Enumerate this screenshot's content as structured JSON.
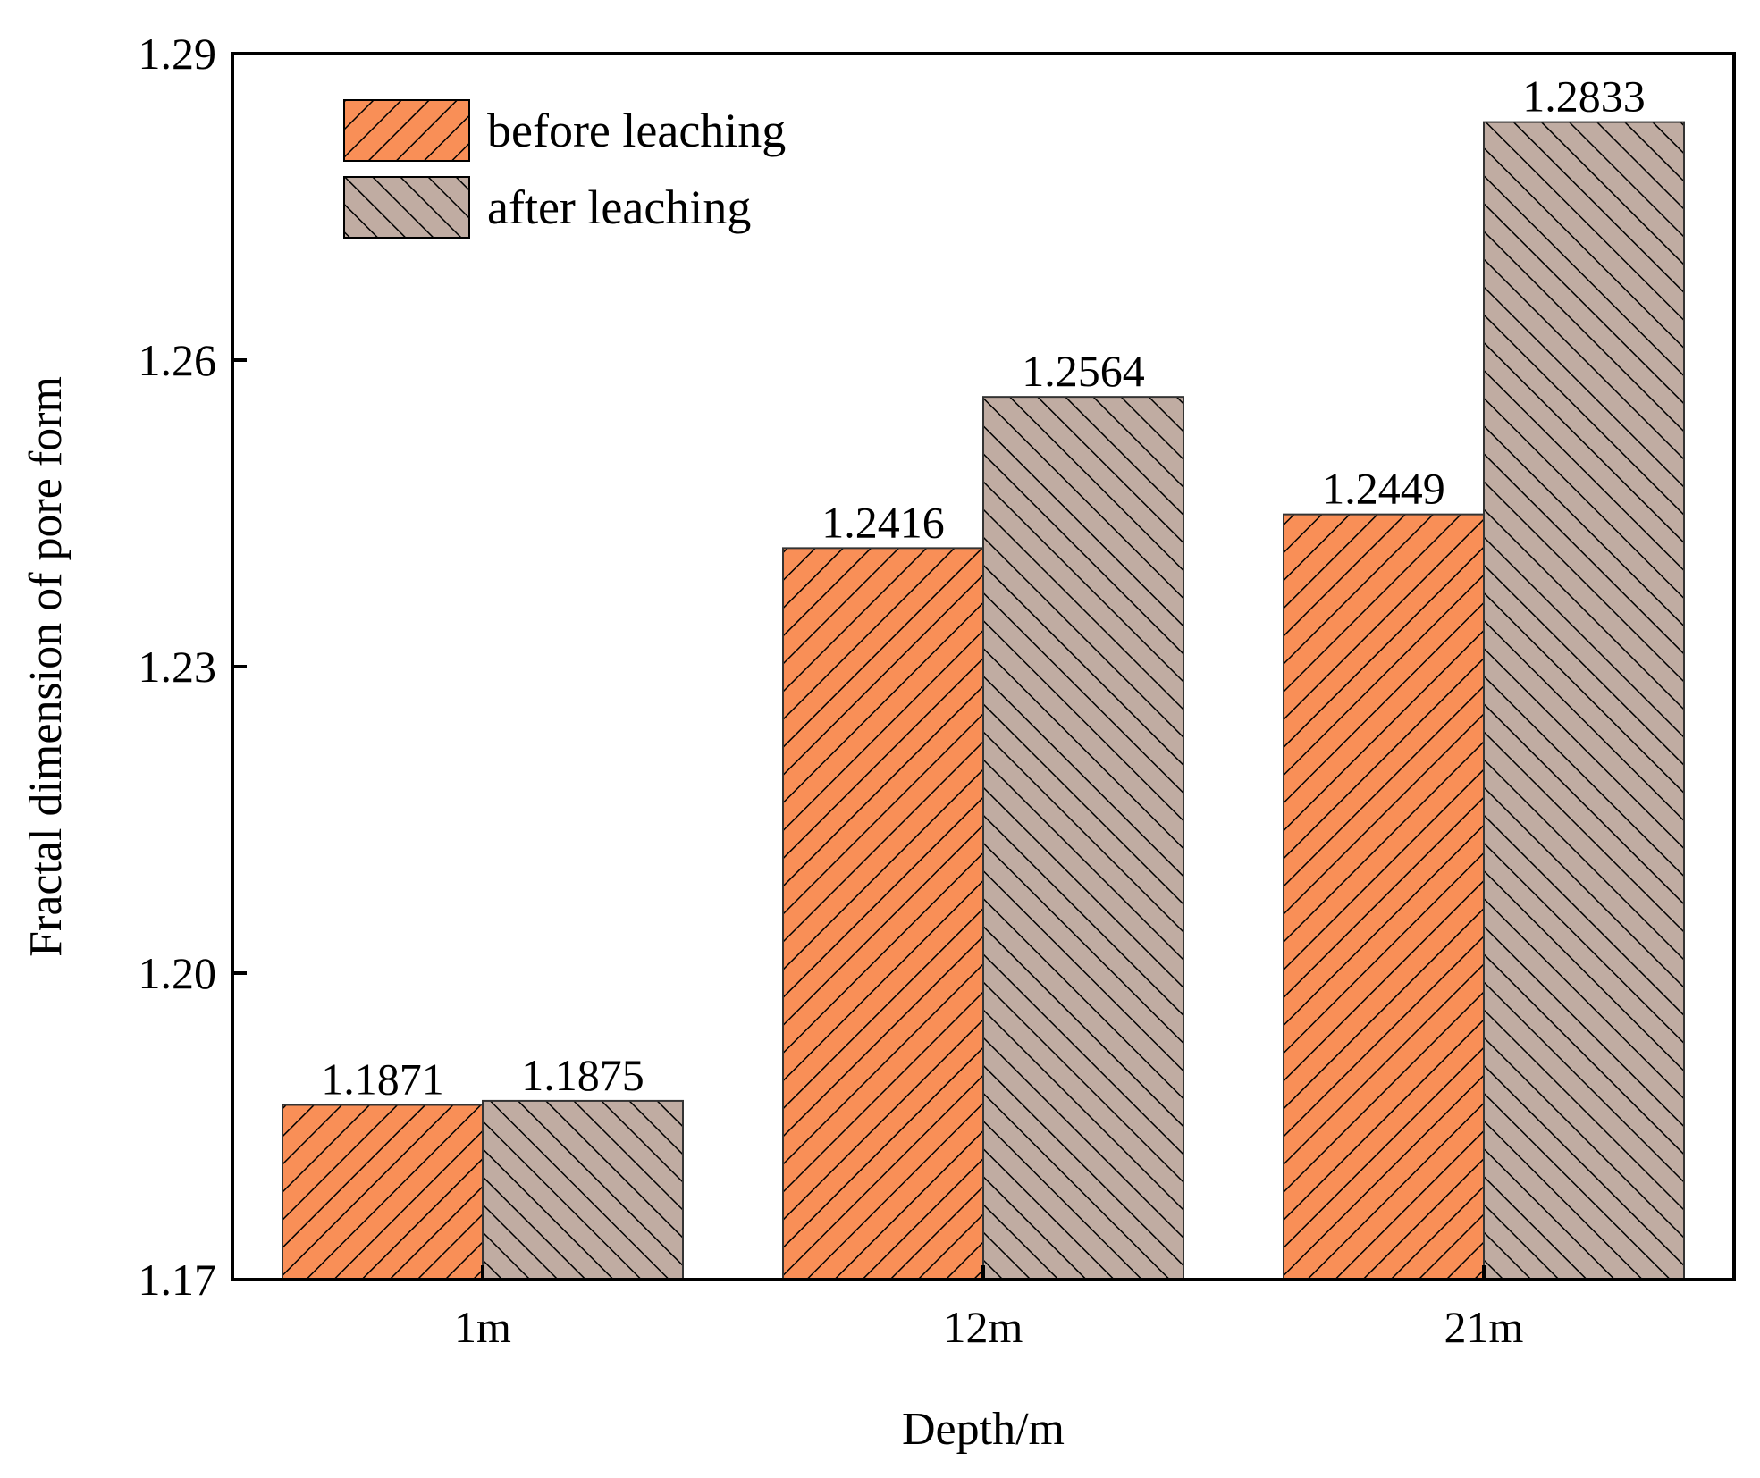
{
  "chart_data": {
    "type": "bar",
    "title": "",
    "xlabel": "Depth/m",
    "ylabel": "Fractal dimension of pore form",
    "categories": [
      "1m",
      "12m",
      "21m"
    ],
    "series": [
      {
        "name": "before leaching",
        "values": [
          1.1871,
          1.2416,
          1.2449
        ],
        "labels": [
          "1.1871",
          "1.2416",
          "1.2449"
        ],
        "color": "#F98F57",
        "hatch": "forward-diagonal"
      },
      {
        "name": "after leaching",
        "values": [
          1.1875,
          1.2564,
          1.2833
        ],
        "labels": [
          "1.1875",
          "1.2564",
          "1.2833"
        ],
        "color": "#C0ACA2",
        "hatch": "back-diagonal"
      }
    ],
    "ylim": [
      1.17,
      1.29
    ],
    "yticks": [
      1.17,
      1.2,
      1.23,
      1.26,
      1.29
    ],
    "ytick_labels": [
      "1.17",
      "1.20",
      "1.23",
      "1.26",
      "1.29"
    ],
    "grid": false,
    "legend_position": "top-left"
  }
}
